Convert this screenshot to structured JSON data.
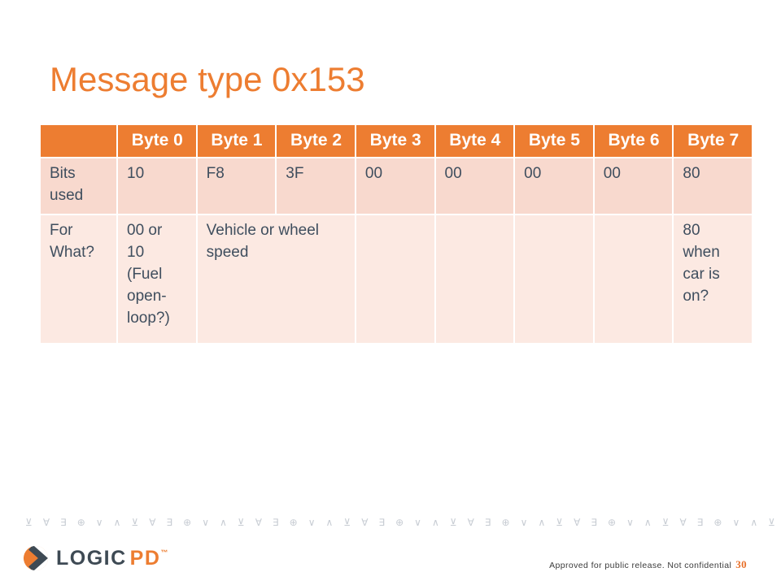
{
  "title": "Message type 0x153",
  "table": {
    "headers": [
      "",
      "Byte 0",
      "Byte 1",
      "Byte 2",
      "Byte 3",
      "Byte 4",
      "Byte 5",
      "Byte 6",
      "Byte 7"
    ],
    "rows": {
      "bits_used": {
        "label": "Bits\nused",
        "cells": [
          "10",
          "F8",
          "3F",
          "00",
          "00",
          "00",
          "00",
          "80"
        ]
      },
      "for_what": {
        "label": "For\nWhat?",
        "byte0": "00 or\n10\n(Fuel\nopen-\nloop?)",
        "byte1_2": "Vehicle or wheel\nspeed",
        "byte3": "",
        "byte4": "",
        "byte5": "",
        "byte6": "",
        "byte7": "80\nwhen\ncar is\non?"
      }
    }
  },
  "footer": {
    "decor_glyph_cycle": [
      "⊻",
      "∀",
      "∃",
      "⊕",
      "∨",
      "∧"
    ],
    "decor_glyph_count": 43,
    "logo": {
      "primary": "LOGIC",
      "secondary": "PD",
      "trademark": "™"
    },
    "approval_text": "Approved for public release. Not confidential",
    "page_number": "30"
  },
  "colors": {
    "accent_orange": "#ED7D31",
    "header_bg": "#ED7D31",
    "row_bits_bg": "#F8D9CE",
    "row_what_bg": "#FCE9E2",
    "table_text": "#3F4E5E",
    "logo_dark": "#3E4A54",
    "decor_gray": "#C7CCD3",
    "page_number_orange": "#E8702A"
  }
}
